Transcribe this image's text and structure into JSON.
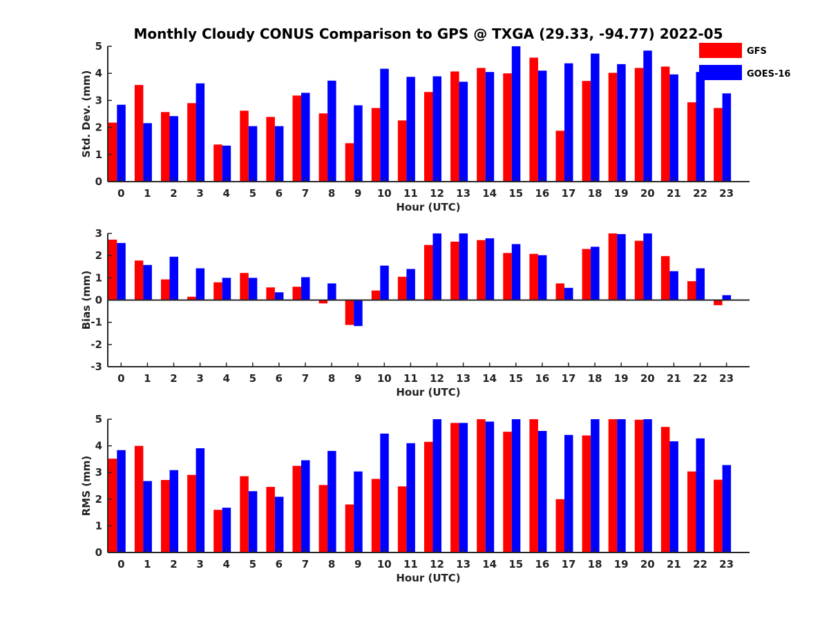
{
  "title": "Monthly Cloudy CONUS Comparison to GPS @ TXGA (29.33, -94.77) 2022-05",
  "legend": {
    "placement": "top-right",
    "items": [
      {
        "name": "GFS",
        "color": "#ff0000"
      },
      {
        "name": "GOES-16",
        "color": "#0000ff"
      }
    ]
  },
  "chart_data": [
    {
      "type": "bar",
      "ylabel": "Std. Dev. (mm)",
      "xlabel": "Hour (UTC)",
      "ylim": [
        0,
        5
      ],
      "yticks": [
        0,
        1,
        2,
        3,
        4,
        5
      ],
      "categories": [
        "0",
        "1",
        "2",
        "3",
        "4",
        "5",
        "6",
        "7",
        "8",
        "9",
        "10",
        "11",
        "12",
        "13",
        "14",
        "15",
        "16",
        "17",
        "18",
        "19",
        "20",
        "21",
        "22",
        "23"
      ],
      "series": [
        {
          "name": "GFS",
          "color": "#ff0000",
          "values": [
            2.18,
            3.57,
            2.57,
            2.9,
            1.37,
            2.62,
            2.39,
            3.18,
            2.52,
            1.42,
            2.72,
            2.26,
            3.31,
            4.07,
            4.2,
            4.0,
            4.58,
            1.88,
            3.72,
            4.02,
            4.2,
            4.25,
            2.93,
            2.72
          ]
        },
        {
          "name": "GOES-16",
          "color": "#0000ff",
          "values": [
            2.84,
            2.16,
            2.42,
            3.63,
            1.33,
            2.05,
            2.05,
            3.28,
            3.73,
            2.82,
            4.17,
            3.87,
            3.89,
            3.69,
            4.05,
            5.0,
            4.1,
            4.37,
            4.73,
            4.34,
            4.84,
            3.96,
            4.05,
            3.26
          ]
        }
      ]
    },
    {
      "type": "bar",
      "ylabel": "Bias (mm)",
      "xlabel": "Hour (UTC)",
      "ylim": [
        -3,
        3
      ],
      "yticks": [
        -3,
        -2,
        -1,
        0,
        1,
        2,
        3
      ],
      "categories": [
        "0",
        "1",
        "2",
        "3",
        "4",
        "5",
        "6",
        "7",
        "8",
        "9",
        "10",
        "11",
        "12",
        "13",
        "14",
        "15",
        "16",
        "17",
        "18",
        "19",
        "20",
        "21",
        "22",
        "23"
      ],
      "series": [
        {
          "name": "GFS",
          "color": "#ff0000",
          "values": [
            2.72,
            1.78,
            0.93,
            0.15,
            0.8,
            1.22,
            0.57,
            0.6,
            -0.15,
            -1.12,
            0.43,
            1.05,
            2.48,
            2.63,
            2.7,
            2.12,
            2.08,
            0.75,
            2.3,
            3.0,
            2.67,
            1.98,
            0.85,
            -0.23
          ]
        },
        {
          "name": "GOES-16",
          "color": "#0000ff",
          "values": [
            2.57,
            1.58,
            1.95,
            1.43,
            1.0,
            1.0,
            0.35,
            1.03,
            0.75,
            -1.17,
            1.55,
            1.4,
            3.0,
            3.0,
            2.78,
            2.52,
            2.02,
            0.55,
            2.4,
            2.97,
            3.0,
            1.3,
            1.43,
            0.22
          ]
        }
      ]
    },
    {
      "type": "bar",
      "ylabel": "RMS (mm)",
      "xlabel": "Hour (UTC)",
      "ylim": [
        0,
        5
      ],
      "yticks": [
        0,
        1,
        2,
        3,
        4,
        5
      ],
      "categories": [
        "0",
        "1",
        "2",
        "3",
        "4",
        "5",
        "6",
        "7",
        "8",
        "9",
        "10",
        "11",
        "12",
        "13",
        "14",
        "15",
        "16",
        "17",
        "18",
        "19",
        "20",
        "21",
        "22",
        "23"
      ],
      "series": [
        {
          "name": "GFS",
          "color": "#ff0000",
          "values": [
            3.52,
            4.0,
            2.72,
            2.91,
            1.6,
            2.86,
            2.46,
            3.25,
            2.53,
            1.8,
            2.76,
            2.48,
            4.15,
            4.86,
            5.0,
            4.53,
            5.0,
            2.0,
            4.39,
            5.0,
            4.98,
            4.71,
            3.04,
            2.73
          ]
        },
        {
          "name": "GOES-16",
          "color": "#0000ff",
          "values": [
            3.84,
            2.68,
            3.09,
            3.91,
            1.68,
            2.3,
            2.09,
            3.46,
            3.81,
            3.04,
            4.46,
            4.1,
            5.0,
            4.86,
            4.91,
            5.0,
            4.56,
            4.41,
            5.0,
            5.0,
            5.0,
            4.17,
            4.28,
            3.28
          ]
        }
      ]
    }
  ]
}
